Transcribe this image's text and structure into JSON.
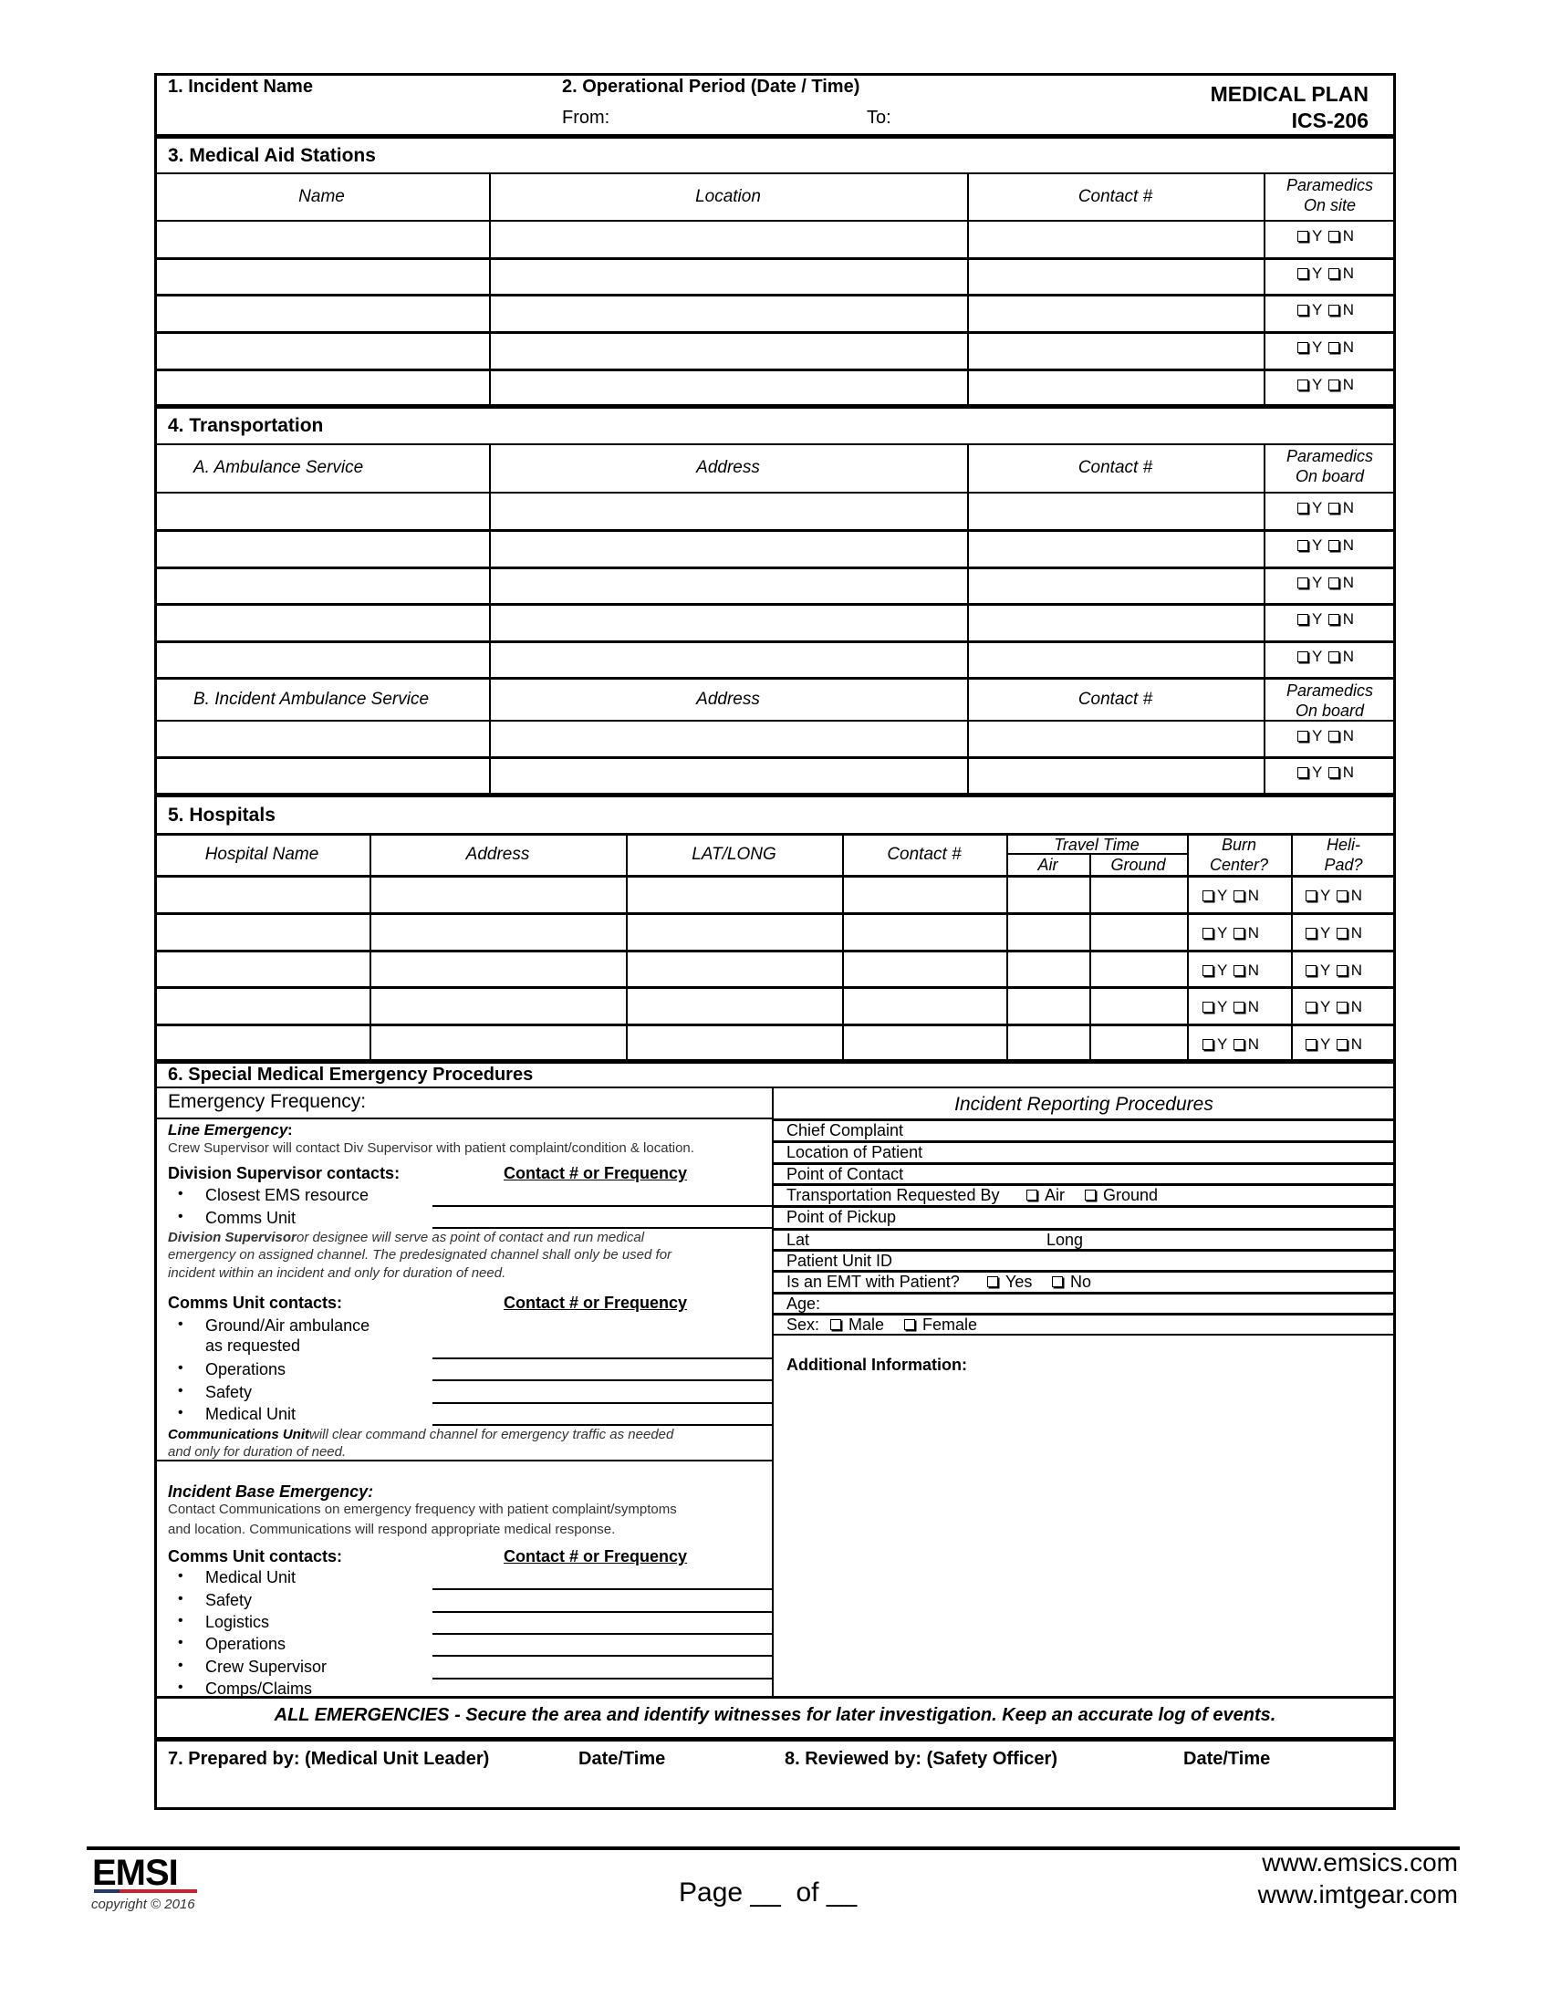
{
  "header": {
    "incident_name_label": "1. Incident Name",
    "op_period_label": "2. Operational Period (Date / Time)",
    "from_label": "From:",
    "to_label": "To:",
    "form_title": "MEDICAL PLAN",
    "form_id": "ICS-206"
  },
  "checkbox": {
    "yes": "Y",
    "no": "N"
  },
  "medical_aid_stations": {
    "title": "3. Medical Aid Stations",
    "columns": [
      "Name",
      "Location",
      "Contact #"
    ],
    "paramedics": [
      "Paramedics",
      "On site"
    ],
    "row_count": 5
  },
  "transportation": {
    "title": "4. Transportation",
    "ambulance": {
      "columns": [
        "A. Ambulance Service",
        "Address",
        "Contact #"
      ],
      "paramedics": [
        "Paramedics",
        "On board"
      ],
      "row_count": 5
    },
    "incident_ambulance": {
      "columns": [
        "B. Incident Ambulance Service",
        "Address",
        "Contact #"
      ],
      "paramedics": [
        "Paramedics",
        "On board"
      ],
      "row_count": 2
    }
  },
  "hospitals": {
    "title": "5. Hospitals",
    "columns": [
      "Hospital Name",
      "Address",
      "LAT/LONG",
      "Contact #"
    ],
    "travel_time": "Travel Time",
    "air": "Air",
    "ground": "Ground",
    "burn_center": [
      "Burn",
      "Center?"
    ],
    "helipad": [
      "Heli-",
      "Pad?"
    ],
    "row_count": 5
  },
  "procedures": {
    "title": "6. Special Medical Emergency Procedures",
    "emergency_frequency": "Emergency Frequency:",
    "line_emergency_title": "Line Emergency",
    "line_emergency_colon": ":",
    "line_emergency_text": "Crew Supervisor will contact Div Supervisor with patient complaint/condition & location.",
    "div_sup_contacts": "Division Supervisor contacts:",
    "contact_freq": "Contact # or Frequency",
    "div_sup_items": [
      "Closest EMS resource",
      "Comms Unit"
    ],
    "div_sup_note_bold": "Division Supervisor",
    "div_sup_note_lines": [
      " or designee will serve as point of contact and run medical",
      "emergency on assigned channel. The predesignated channel shall only be used for",
      "incident within an incident and only for duration of need."
    ],
    "comms_contacts": "Comms Unit contacts:",
    "comms_items": [
      "Ground/Air ambulance",
      "as requested",
      "Operations",
      "Safety",
      "Medical Unit"
    ],
    "comms_note_bold": "Communications Unit",
    "comms_note_lines": [
      " will clear command channel for emergency traffic as needed",
      "and only for duration of need."
    ],
    "base_title": "Incident Base Emergency:",
    "base_text": [
      "Contact Communications on emergency frequency with patient complaint/symptoms",
      "and location. Communications will respond appropriate medical response."
    ],
    "base_contacts": "Comms Unit contacts:",
    "base_items": [
      "Medical Unit",
      "Safety",
      "Logistics",
      "Operations",
      "Crew Supervisor",
      "Comps/Claims"
    ],
    "bullet": "•"
  },
  "reporting": {
    "title": "Incident Reporting Procedures",
    "rows": [
      {
        "label": "Chief Complaint"
      },
      {
        "label": "Location of Patient"
      },
      {
        "label": "Point of Contact"
      },
      {
        "label": "Transportation Requested By",
        "options": [
          "Air",
          "Ground"
        ]
      },
      {
        "label": "Point of Pickup"
      },
      {
        "label": "Lat",
        "second": "Long"
      },
      {
        "label": "Patient Unit ID"
      },
      {
        "label": "Is an EMT with Patient?",
        "options": [
          "Yes",
          "No"
        ]
      },
      {
        "label": "Age:"
      },
      {
        "label": "Sex:",
        "options": [
          "Male",
          "Female"
        ]
      }
    ],
    "additional_info": "Additional Information:"
  },
  "all_emergencies": {
    "bold": "ALL EMERGENCIES",
    "text": " - Secure the area and identify witnesses for later investigation. Keep an accurate log of events."
  },
  "signatures": {
    "prepared_by": "7. Prepared by: (Medical Unit Leader)",
    "prepared_datetime": "Date/Time",
    "reviewed_by": "8. Reviewed by: (Safety Officer)",
    "reviewed_datetime": "Date/Time"
  },
  "footer": {
    "logo": "EMSI",
    "copyright": "copyright © 2016",
    "page_label": "Page",
    "page_blank": "__",
    "of_label": "of",
    "of_blank": "__",
    "url1": "www.emsics.com",
    "url2": "www.imtgear.com"
  },
  "colors": {
    "logo_blue": "#1f3a6e",
    "logo_red": "#d0202e"
  }
}
